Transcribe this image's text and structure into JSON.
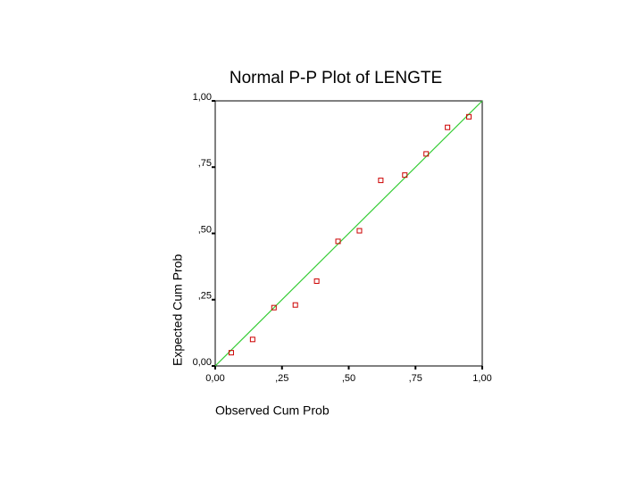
{
  "chart_data": {
    "type": "scatter",
    "title": "Normal P-P Plot of LENGTE",
    "x_label": "Observed Cum Prob",
    "y_label": "Expected Cum Prob",
    "x": [
      0.06,
      0.14,
      0.22,
      0.3,
      0.38,
      0.46,
      0.54,
      0.62,
      0.71,
      0.79,
      0.87,
      0.95
    ],
    "values": [
      0.05,
      0.1,
      0.22,
      0.23,
      0.32,
      0.47,
      0.51,
      0.7,
      0.72,
      0.8,
      0.9,
      0.94
    ],
    "color": "#cc0000",
    "line_color": "#33cc33",
    "reference_line": true,
    "xlim": [
      0,
      1
    ],
    "ylim": [
      0,
      1
    ],
    "xticks": [
      {
        "value": 0,
        "label": "0,00"
      },
      {
        "value": 0.25,
        "label": ",25"
      },
      {
        "value": 0.5,
        "label": ",50"
      },
      {
        "value": 0.75,
        "label": ",75"
      },
      {
        "value": 1,
        "label": "1,00"
      }
    ],
    "yticks": [
      {
        "value": 0,
        "label": "0,00"
      },
      {
        "value": 0.25,
        "label": ",25"
      },
      {
        "value": 0.5,
        "label": ",50"
      },
      {
        "value": 0.75,
        "label": ",75"
      },
      {
        "value": 1,
        "label": "1,00"
      }
    ]
  }
}
